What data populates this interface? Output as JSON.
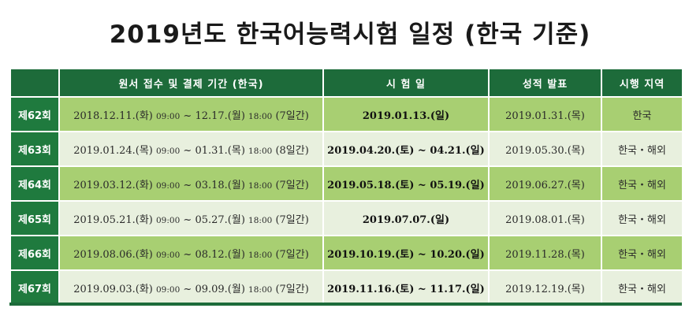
{
  "title": "2019년도 한국어능력시험 일정 (한국 기준)",
  "headers": {
    "corner": "",
    "application": "원서 접수 및 결제 기간 (한국)",
    "exam_date": "시 험 일",
    "results": "성적 발표",
    "region": "시행 지역"
  },
  "rows": [
    {
      "round": "제62회",
      "start_date": "2018.12.11.(화)",
      "start_time": "09:00",
      "tilde": "~",
      "end_date": "12.17.(월)",
      "end_time": "18:00",
      "duration": "(7일간)",
      "exam_date": "2019.01.13.(일)",
      "results": "2019.01.31.(목)",
      "region": "한국",
      "shade": "dark"
    },
    {
      "round": "제63회",
      "start_date": "2019.01.24.(목)",
      "start_time": "09:00",
      "tilde": "~",
      "end_date": "01.31.(목)",
      "end_time": "18:00",
      "duration": "(8일간)",
      "exam_date": "2019.04.20.(토) ~ 04.21.(일)",
      "results": "2019.05.30.(목)",
      "region": "한국・해외",
      "shade": "light"
    },
    {
      "round": "제64회",
      "start_date": "2019.03.12.(화)",
      "start_time": "09:00",
      "tilde": "~",
      "end_date": "03.18.(월)",
      "end_time": "18:00",
      "duration": "(7일간)",
      "exam_date": "2019.05.18.(토) ~ 05.19.(일)",
      "results": "2019.06.27.(목)",
      "region": "한국・해외",
      "shade": "dark"
    },
    {
      "round": "제65회",
      "start_date": "2019.05.21.(화)",
      "start_time": "09:00",
      "tilde": "~",
      "end_date": "05.27.(월)",
      "end_time": "18:00",
      "duration": "(7일간)",
      "exam_date": "2019.07.07.(일)",
      "results": "2019.08.01.(목)",
      "region": "한국・해외",
      "shade": "light"
    },
    {
      "round": "제66회",
      "start_date": "2019.08.06.(화)",
      "start_time": "09:00",
      "tilde": "~",
      "end_date": "08.12.(월)",
      "end_time": "18:00",
      "duration": "(7일간)",
      "exam_date": "2019.10.19.(토) ~ 10.20.(일)",
      "results": "2019.11.28.(목)",
      "region": "한국・해외",
      "shade": "dark"
    },
    {
      "round": "제67회",
      "start_date": "2019.09.03.(화)",
      "start_time": "09:00",
      "tilde": "~",
      "end_date": "09.09.(월)",
      "end_time": "18:00",
      "duration": "(7일간)",
      "exam_date": "2019.11.16.(토) ~ 11.17.(일)",
      "results": "2019.12.19.(목)",
      "region": "한국・해외",
      "shade": "light"
    }
  ],
  "colors": {
    "header_green": "#1d6b3a",
    "round_green": "#1f7a3e",
    "row_dark": "#a8cf72",
    "row_light": "#e8f0de"
  }
}
